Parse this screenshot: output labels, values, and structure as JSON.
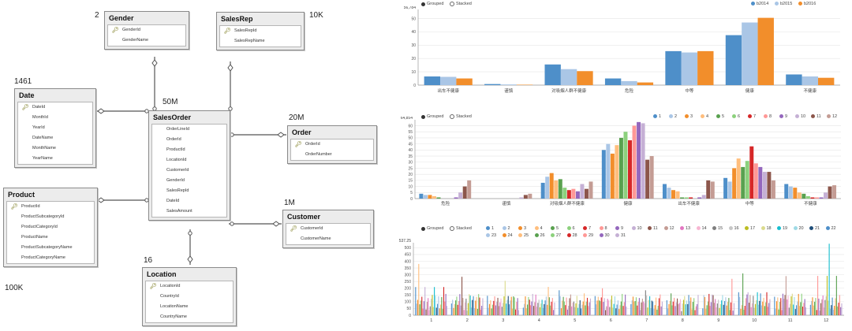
{
  "diagram": {
    "tables": [
      {
        "id": "gender",
        "title": "Gender",
        "count": "2",
        "columns": [
          {
            "name": "GenderId",
            "key": true
          },
          {
            "name": "GenderName",
            "key": false
          }
        ]
      },
      {
        "id": "salesrep",
        "title": "SalesRep",
        "count": "10K",
        "columns": [
          {
            "name": "SalesRepId",
            "key": true
          },
          {
            "name": "SalesRepName",
            "key": false
          }
        ]
      },
      {
        "id": "date",
        "title": "Date",
        "count": "1461",
        "columns": [
          {
            "name": "DateId",
            "key": true
          },
          {
            "name": "MonthId",
            "key": false
          },
          {
            "name": "YearId",
            "key": false
          },
          {
            "name": "DateName",
            "key": false
          },
          {
            "name": "MonthName",
            "key": false
          },
          {
            "name": "YearName",
            "key": false
          }
        ]
      },
      {
        "id": "salesorder",
        "title": "SalesOrder",
        "count": "50M",
        "columns": [
          {
            "name": "OrderLineId",
            "key": false
          },
          {
            "name": "OrderId",
            "key": false
          },
          {
            "name": "ProductId",
            "key": false
          },
          {
            "name": "LocationId",
            "key": false
          },
          {
            "name": "CustomerId",
            "key": false
          },
          {
            "name": "GenderId",
            "key": false
          },
          {
            "name": "SalesRepId",
            "key": false
          },
          {
            "name": "DateId",
            "key": false
          },
          {
            "name": "SalesAmount",
            "key": false
          }
        ]
      },
      {
        "id": "order",
        "title": "Order",
        "count": "20M",
        "columns": [
          {
            "name": "OrderId",
            "key": true
          },
          {
            "name": "OrderNumber",
            "key": false
          }
        ]
      },
      {
        "id": "product",
        "title": "Product",
        "count": "100K",
        "columns": [
          {
            "name": "ProductId",
            "key": true
          },
          {
            "name": "ProductSubcategoryId",
            "key": false
          },
          {
            "name": "ProductCategoryId",
            "key": false
          },
          {
            "name": "ProductName",
            "key": false
          },
          {
            "name": "ProductSubcategoryName",
            "key": false
          },
          {
            "name": "ProductCategoryName",
            "key": false
          }
        ]
      },
      {
        "id": "customer",
        "title": "Customer",
        "count": "1M",
        "columns": [
          {
            "name": "CustomerId",
            "key": true
          },
          {
            "name": "CustomerName",
            "key": false
          }
        ]
      },
      {
        "id": "location",
        "title": "Location",
        "count": "16",
        "columns": [
          {
            "name": "LocationId",
            "key": true
          },
          {
            "name": "CountryId",
            "key": false
          },
          {
            "name": "LocationName",
            "key": false
          },
          {
            "name": "CountryName",
            "key": false
          }
        ]
      }
    ]
  },
  "controls": {
    "grouped": "Grouped",
    "stacked": "Stacked"
  },
  "colors": [
    "#4e8fc9",
    "#aac6e6",
    "#f28e2b",
    "#ffbe7d",
    "#59a14f",
    "#8cd17d",
    "#d62728",
    "#ff9896",
    "#9467bd",
    "#c5b0d5",
    "#8c564b",
    "#c49c94",
    "#e377c2",
    "#f7b6d2",
    "#7f7f7f",
    "#c7c7c7",
    "#bcbd22",
    "#dbdb8d",
    "#17becf",
    "#9edae5",
    "#1f4e79"
  ],
  "chart_data": [
    {
      "type": "bar",
      "ymax_label": "56,784",
      "yticks": [
        0,
        10,
        20,
        30,
        40,
        50
      ],
      "ylim": [
        0,
        56.784
      ],
      "categories": [
        "出车不健康",
        "谨慎",
        "对吸烟人群不健康",
        "危险",
        "中等",
        "健康",
        "不健康"
      ],
      "series": [
        {
          "name": "b2014",
          "values": [
            6.5,
            0.8,
            15.5,
            5,
            25.5,
            37.5,
            8
          ]
        },
        {
          "name": "b2015",
          "values": [
            6.2,
            0.5,
            12,
            3,
            24.5,
            47,
            6.5
          ]
        },
        {
          "name": "b2016",
          "values": [
            5,
            0.3,
            10.5,
            2,
            25.5,
            50.5,
            5.5
          ]
        }
      ]
    },
    {
      "type": "bar",
      "ymax_label": "64,854",
      "yticks": [
        0,
        5,
        10,
        15,
        20,
        25,
        30,
        35,
        40,
        45,
        50,
        55,
        60
      ],
      "ylim": [
        0,
        64.854
      ],
      "categories": [
        "危险",
        "谨慎",
        "对吸烟人群不健康",
        "健康",
        "出车不健康",
        "中等",
        "不健康"
      ],
      "legend": [
        "1",
        "2",
        "3",
        "4",
        "5",
        "6",
        "7",
        "8",
        "9",
        "10",
        "11",
        "12"
      ],
      "values": [
        [
          4,
          3,
          3,
          2,
          1,
          0,
          0,
          0,
          1,
          5,
          10,
          15
        ],
        [
          0,
          0,
          0,
          0,
          0,
          0,
          0,
          0,
          0,
          1,
          3,
          4
        ],
        [
          13,
          18,
          21,
          15,
          16,
          9,
          7,
          8,
          6,
          12,
          8,
          14
        ],
        [
          40,
          45,
          37,
          44,
          50,
          55,
          48,
          60,
          63,
          62,
          32,
          35
        ],
        [
          12,
          9,
          7,
          6,
          1,
          1,
          1,
          0,
          1,
          3,
          15,
          14
        ],
        [
          17,
          14,
          25,
          33,
          26,
          31,
          43,
          29,
          26,
          22,
          22,
          15
        ],
        [
          12,
          10,
          9,
          5,
          4,
          2,
          1,
          1,
          1,
          5,
          10,
          11
        ]
      ]
    },
    {
      "type": "bar",
      "ymax_label": "537.25",
      "yticks": [
        0,
        50,
        100,
        150,
        200,
        250,
        300,
        350,
        400,
        450,
        500
      ],
      "ylim": [
        0,
        537.25
      ],
      "categories": [
        "1",
        "2",
        "3",
        "4",
        "5",
        "6",
        "7",
        "8",
        "9",
        "10",
        "11",
        "12"
      ],
      "legend": [
        "1",
        "2",
        "3",
        "4",
        "5",
        "6",
        "7",
        "8",
        "9",
        "10",
        "11",
        "12",
        "13",
        "14",
        "15",
        "16",
        "17",
        "18",
        "19",
        "20",
        "21",
        "22",
        "23",
        "24",
        "25",
        "26",
        "27",
        "28",
        "29",
        "30",
        "31"
      ],
      "peaks": [
        380,
        285,
        255,
        210,
        185,
        200,
        185,
        150,
        270,
        310,
        290,
        530
      ]
    }
  ]
}
